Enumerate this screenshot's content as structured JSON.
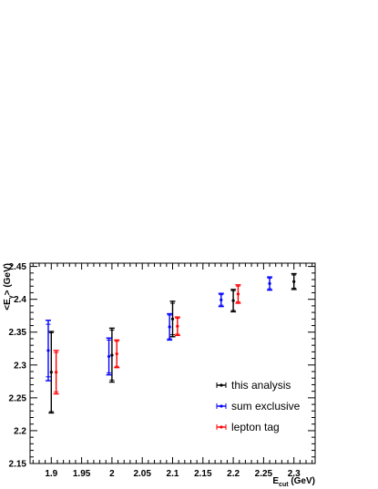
{
  "chart_data": {
    "type": "scatter",
    "title": "",
    "xlabel": {
      "main": "E",
      "sub": "cut",
      "unit": " (GeV)"
    },
    "ylabel": {
      "main": "<E",
      "sub": "γ",
      "unit": "> (GeV)"
    },
    "xlim": [
      1.865,
      2.335
    ],
    "ylim": [
      2.15,
      2.455
    ],
    "x_ticks": [
      {
        "value": 1.9,
        "label": "1.9"
      },
      {
        "value": 1.95,
        "label": "1.95"
      },
      {
        "value": 2.0,
        "label": "2"
      },
      {
        "value": 2.05,
        "label": "2.05"
      },
      {
        "value": 2.1,
        "label": "2.1"
      },
      {
        "value": 2.15,
        "label": "2.15"
      },
      {
        "value": 2.2,
        "label": "2.2"
      },
      {
        "value": 2.25,
        "label": "2.25"
      },
      {
        "value": 2.3,
        "label": "2.3"
      }
    ],
    "y_ticks": [
      {
        "value": 2.15,
        "label": "2.15"
      },
      {
        "value": 2.2,
        "label": "2.2"
      },
      {
        "value": 2.25,
        "label": "2.25"
      },
      {
        "value": 2.3,
        "label": "2.3"
      },
      {
        "value": 2.35,
        "label": "2.35"
      },
      {
        "value": 2.4,
        "label": "2.4"
      },
      {
        "value": 2.45,
        "label": "2.45"
      }
    ],
    "grid": false,
    "legend_position": "bottom-right",
    "series": [
      {
        "name": "this analysis",
        "color": "#000000",
        "points": [
          {
            "x": 1.9,
            "y": 2.289,
            "err_inner": 0.06,
            "err_outer": 0.062
          },
          {
            "x": 2.0,
            "y": 2.315,
            "err_inner": 0.038,
            "err_outer": 0.041
          },
          {
            "x": 2.1,
            "y": 2.37,
            "err_inner": 0.024,
            "err_outer": 0.027
          },
          {
            "x": 2.2,
            "y": 2.398,
            "err_inner": 0.015,
            "err_outer": 0.017
          },
          {
            "x": 2.3,
            "y": 2.427,
            "err_inner": 0.01,
            "err_outer": 0.012
          }
        ]
      },
      {
        "name": "sum exclusive",
        "color": "#0000ff",
        "points": [
          {
            "x": 1.895,
            "y": 2.322,
            "err_inner": 0.04,
            "err_outer": 0.046
          },
          {
            "x": 1.995,
            "y": 2.313,
            "err_inner": 0.025,
            "err_outer": 0.028
          },
          {
            "x": 2.095,
            "y": 2.358,
            "err_inner": 0.018,
            "err_outer": 0.02
          },
          {
            "x": 2.18,
            "y": 2.399,
            "err_inner": 0.008,
            "err_outer": 0.01
          },
          {
            "x": 2.26,
            "y": 2.424,
            "err_inner": 0.008,
            "err_outer": 0.01
          }
        ]
      },
      {
        "name": "lepton tag",
        "color": "#ff0000",
        "points": [
          {
            "x": 1.908,
            "y": 2.289,
            "err_inner": 0.03,
            "err_outer": 0.033
          },
          {
            "x": 2.008,
            "y": 2.317,
            "err_inner": 0.019,
            "err_outer": 0.021
          },
          {
            "x": 2.108,
            "y": 2.359,
            "err_inner": 0.012,
            "err_outer": 0.014
          },
          {
            "x": 2.208,
            "y": 2.408,
            "err_inner": 0.012,
            "err_outer": 0.014
          }
        ]
      }
    ]
  }
}
